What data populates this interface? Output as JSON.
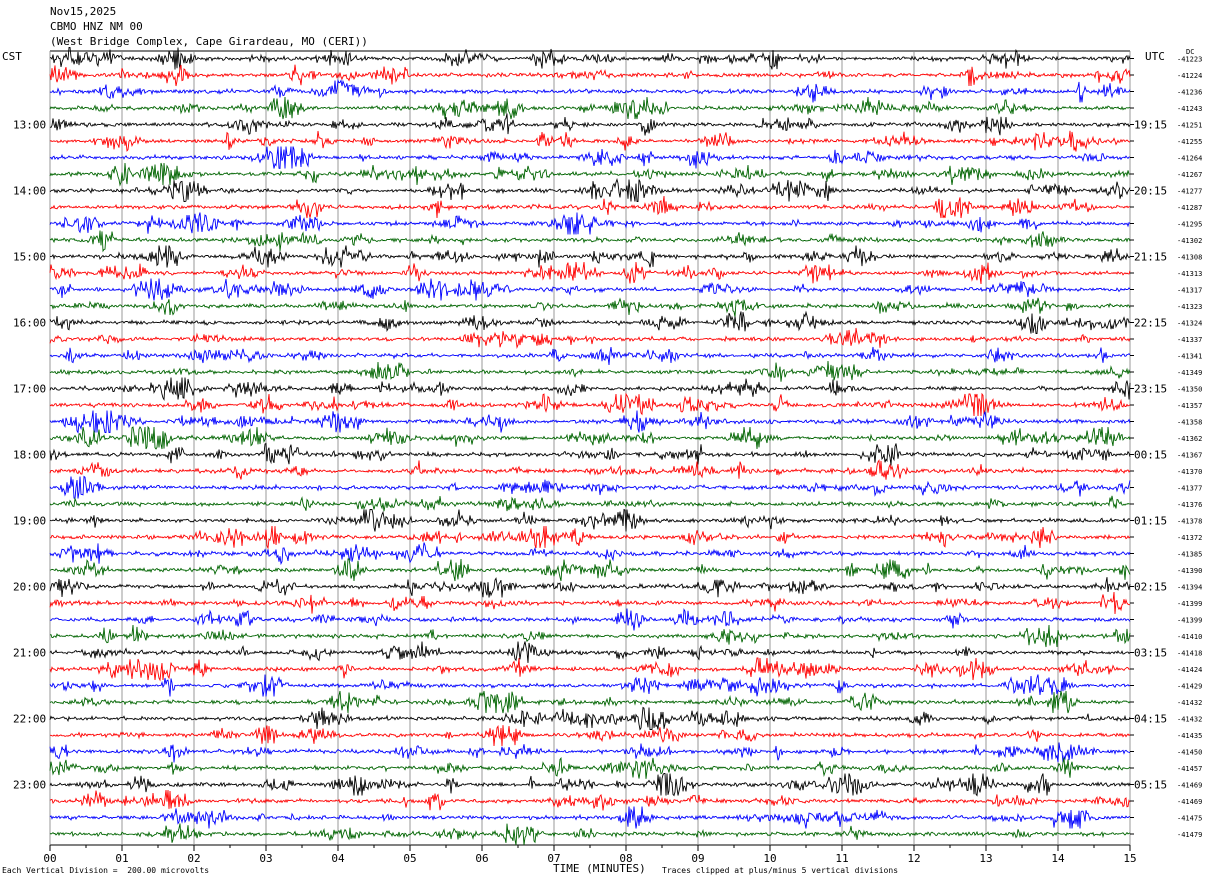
{
  "header": {
    "date": "Nov15,2025",
    "station": "CBMO HNZ NM 00",
    "location": "(West Bridge Complex, Cape Girardeau, MO (CERI))"
  },
  "left_axis_label": "CST",
  "right_axis_label": "UTC",
  "dc_label": "DC",
  "footer": {
    "scale_note": "Each Vertical Division =  200.00 microvolts",
    "clip_note": "Traces clipped at plus/minus 5 vertical divisions"
  },
  "colors": {
    "trace_cycle": [
      "#000000",
      "#ff0000",
      "#0000ff",
      "#006400"
    ],
    "grid": "#808080",
    "background": "#ffffff"
  },
  "chart_data": {
    "type": "seismogram-helicorder",
    "xlabel": "TIME (MINUTES)",
    "xlim": [
      0,
      15
    ],
    "x_ticks": [
      "00",
      "01",
      "02",
      "03",
      "04",
      "05",
      "06",
      "07",
      "08",
      "09",
      "10",
      "11",
      "12",
      "13",
      "14",
      "15"
    ],
    "lines_per_hour": 4,
    "minutes_per_line": 15,
    "left_hour_labels": [
      {
        "line": 4,
        "label": "13:00"
      },
      {
        "line": 8,
        "label": "14:00"
      },
      {
        "line": 12,
        "label": "15:00"
      },
      {
        "line": 16,
        "label": "16:00"
      },
      {
        "line": 20,
        "label": "17:00"
      },
      {
        "line": 24,
        "label": "18:00"
      },
      {
        "line": 28,
        "label": "19:00"
      },
      {
        "line": 32,
        "label": "20:00"
      },
      {
        "line": 36,
        "label": "21:00"
      },
      {
        "line": 40,
        "label": "22:00"
      },
      {
        "line": 44,
        "label": "23:00"
      }
    ],
    "right_hour_labels": [
      {
        "line": 4,
        "label": "19:15"
      },
      {
        "line": 8,
        "label": "20:15"
      },
      {
        "line": 12,
        "label": "21:15"
      },
      {
        "line": 16,
        "label": "22:15"
      },
      {
        "line": 20,
        "label": "23:15"
      },
      {
        "line": 24,
        "label": "00:15"
      },
      {
        "line": 28,
        "label": "01:15"
      },
      {
        "line": 32,
        "label": "02:15"
      },
      {
        "line": 36,
        "label": "03:15"
      },
      {
        "line": 40,
        "label": "04:15"
      },
      {
        "line": 44,
        "label": "05:15"
      }
    ],
    "dc_offsets": [
      "-41223",
      "-41224",
      "-41236",
      "-41243",
      "-41251",
      "-41255",
      "-41264",
      "-41267",
      "-41277",
      "-41287",
      "-41295",
      "-41302",
      "-41308",
      "-41313",
      "-41317",
      "-41323",
      "-41324",
      "-41337",
      "-41341",
      "-41349",
      "-41350",
      "-41357",
      "-41358",
      "-41362",
      "-41367",
      "-41370",
      "-41377",
      "-41376",
      "-41378",
      "-41372",
      "-41385",
      "-41390",
      "-41394",
      "-41399",
      "-41399",
      "-41410",
      "-41418",
      "-41424",
      "-41429",
      "-41432",
      "-41432",
      "-41435",
      "-41450",
      "-41457",
      "-41469",
      "-41469",
      "-41475",
      "-41479"
    ]
  }
}
